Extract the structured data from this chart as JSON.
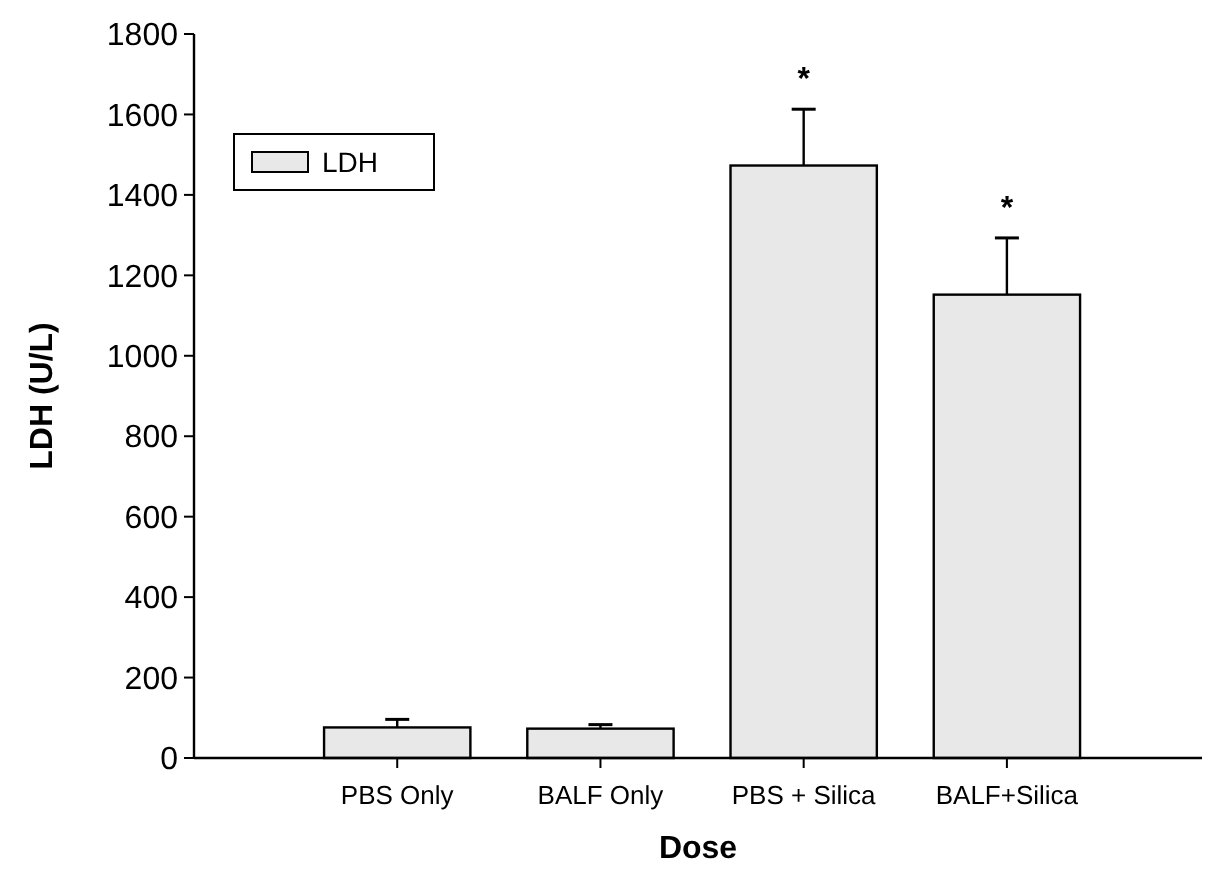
{
  "chart_data": {
    "type": "bar",
    "xlabel": "Dose",
    "ylabel": "LDH (U/L)",
    "categories": [
      "PBS Only",
      "BALF Only",
      "PBS + Silica",
      "BALF+Silica"
    ],
    "series": [
      {
        "name": "LDH",
        "color": "#e8e8e8",
        "values": [
          76,
          73,
          1473,
          1152
        ],
        "errors": [
          [
            76,
            96
          ],
          [
            73,
            83
          ],
          [
            1473,
            1613
          ],
          [
            1152,
            1293
          ]
        ]
      }
    ],
    "ylim": [
      0,
      1800
    ],
    "yticks": [
      0,
      200,
      400,
      600,
      800,
      1000,
      1200,
      1400,
      1600,
      1800
    ],
    "annotations": [
      {
        "text": "*",
        "x": "PBS + Silica",
        "y": 1473
      },
      {
        "text": "*",
        "x": "BALF+Silica",
        "y": 1152
      }
    ],
    "legend": "top left",
    "grid": false
  }
}
